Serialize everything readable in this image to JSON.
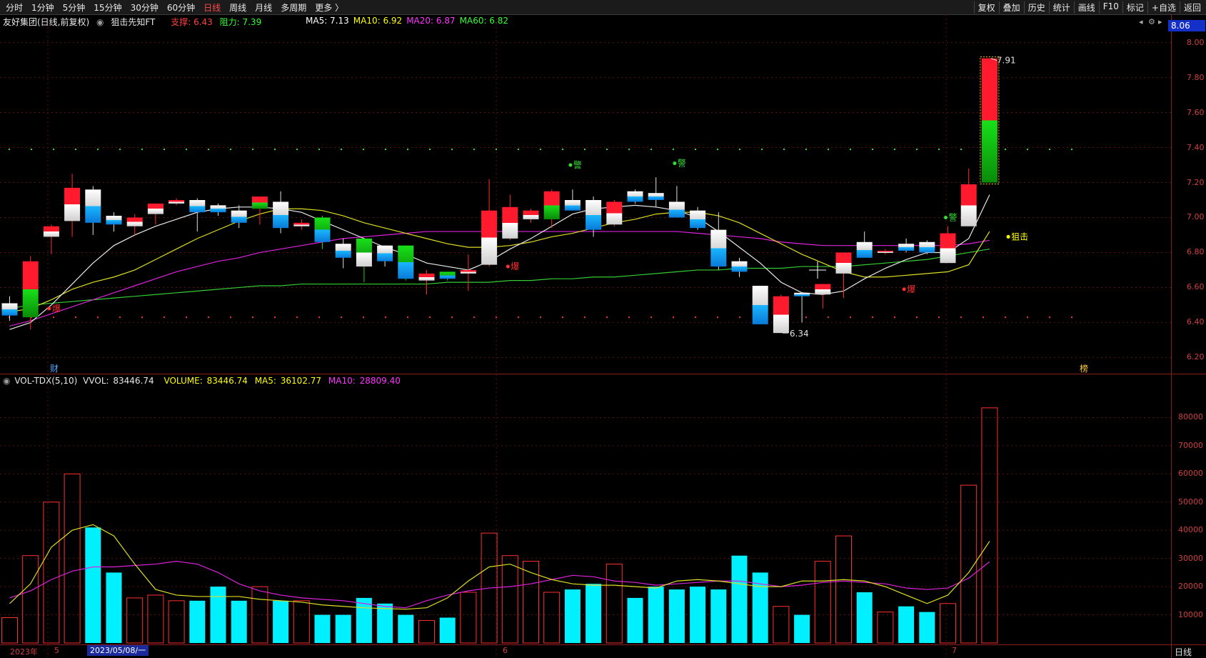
{
  "toolbar": {
    "periods": [
      "分时",
      "1分钟",
      "5分钟",
      "15分钟",
      "30分钟",
      "60分钟",
      "日线",
      "周线",
      "月线",
      "多周期",
      "更多 〉"
    ],
    "active_period": "日线",
    "tools": [
      "复权",
      "叠加",
      "历史",
      "统计",
      "画线",
      "F10",
      "标记",
      "+自选",
      "返回"
    ]
  },
  "main_panel": {
    "title": "友好集团(日线,前复权)",
    "indicator_name": "狙击先知FT",
    "support_label": "支撑:",
    "support_value": "6.43",
    "resist_label": "阻力:",
    "resist_value": "7.39",
    "ma": [
      {
        "label": "MA5:",
        "value": "7.13",
        "color": "#ffffff"
      },
      {
        "label": "MA10:",
        "value": "6.92",
        "color": "#ffff00"
      },
      {
        "label": "MA20:",
        "value": "6.87",
        "color": "#ff33ff"
      },
      {
        "label": "MA60:",
        "value": "6.82",
        "color": "#33ff33"
      }
    ],
    "current_price": "8.06",
    "high_label": "7.91",
    "low_label": "6.34",
    "fin_marker": "财",
    "bang_marker": "榜",
    "signals": [
      {
        "text": "警",
        "color": "#33dd33",
        "candle": 27,
        "price": 7.3
      },
      {
        "text": "警",
        "color": "#33dd33",
        "candle": 32,
        "price": 7.31
      },
      {
        "text": "警",
        "color": "#33dd33",
        "candle": 45,
        "price": 7.0
      },
      {
        "text": "爆",
        "color": "#ff3030",
        "candle": 2,
        "price": 6.48
      },
      {
        "text": "爆",
        "color": "#ff3030",
        "candle": 24,
        "price": 6.72
      },
      {
        "text": "爆",
        "color": "#ff3030",
        "candle": 43,
        "price": 6.59
      },
      {
        "text": "狙击",
        "color": "#ffff00",
        "candle": 48,
        "price": 6.89
      }
    ]
  },
  "vol_panel": {
    "title": "VOL-TDX(5,10)",
    "vvol_label": "VVOL:",
    "vvol_value": "83446.74",
    "volume_label": "VOLUME:",
    "volume_value": "83446.74",
    "ma5_label": "MA5:",
    "ma5_value": "36102.77",
    "ma10_label": "MA10:",
    "ma10_value": "28809.40"
  },
  "price_axis": [
    "8.00",
    "7.80",
    "7.60",
    "7.40",
    "7.20",
    "7.00",
    "6.80",
    "6.60",
    "6.40",
    "6.20"
  ],
  "vol_axis": [
    "80000",
    "70000",
    "60000",
    "50000",
    "40000",
    "30000",
    "20000",
    "10000"
  ],
  "date_axis": {
    "year": "2023年",
    "m5": "5",
    "m6": "6",
    "m7": "7",
    "cursor_date": "2023/05/08/一"
  },
  "bottom_right": "日线",
  "chart_data": {
    "type": "candlestick",
    "price_range": [
      6.12,
      8.08
    ],
    "vol_range": [
      0,
      90000
    ],
    "support": 6.43,
    "resist": 7.39,
    "candles": [
      {
        "o": 6.44,
        "h": 6.55,
        "l": 6.41,
        "c": 6.51,
        "v": 9000,
        "col": "w",
        "up": true
      },
      {
        "o": 6.43,
        "h": 6.78,
        "l": 6.36,
        "c": 6.75,
        "v": 31000,
        "col": "rg",
        "up": true
      },
      {
        "o": 6.89,
        "h": 6.96,
        "l": 6.79,
        "c": 6.95,
        "v": 50000,
        "col": "rw",
        "up": true
      },
      {
        "o": 6.98,
        "h": 7.25,
        "l": 6.89,
        "c": 7.17,
        "v": 60000,
        "col": "rw",
        "up": true
      },
      {
        "o": 7.16,
        "h": 7.18,
        "l": 6.9,
        "c": 6.97,
        "v": 41000,
        "col": "wb",
        "up": false
      },
      {
        "o": 7.01,
        "h": 7.03,
        "l": 6.92,
        "c": 6.96,
        "v": 25000,
        "col": "wb",
        "up": false
      },
      {
        "o": 6.95,
        "h": 7.02,
        "l": 6.9,
        "c": 7.0,
        "v": 16000,
        "col": "rw",
        "up": true
      },
      {
        "o": 7.02,
        "h": 7.08,
        "l": 6.96,
        "c": 7.08,
        "v": 17000,
        "col": "rw",
        "up": true
      },
      {
        "o": 7.08,
        "h": 7.11,
        "l": 7.07,
        "c": 7.1,
        "v": 15000,
        "col": "rw",
        "up": true
      },
      {
        "o": 7.1,
        "h": 7.11,
        "l": 6.92,
        "c": 7.03,
        "v": 15000,
        "col": "wb",
        "up": false
      },
      {
        "o": 7.07,
        "h": 7.08,
        "l": 7.01,
        "c": 7.03,
        "v": 20000,
        "col": "wb",
        "up": false
      },
      {
        "o": 7.04,
        "h": 7.07,
        "l": 6.94,
        "c": 6.97,
        "v": 15000,
        "col": "wb",
        "up": false
      },
      {
        "o": 7.05,
        "h": 7.12,
        "l": 6.96,
        "c": 7.12,
        "v": 20000,
        "col": "rg",
        "up": true
      },
      {
        "o": 7.09,
        "h": 7.15,
        "l": 6.91,
        "c": 6.94,
        "v": 15000,
        "col": "wb",
        "up": false
      },
      {
        "o": 6.95,
        "h": 6.99,
        "l": 6.93,
        "c": 6.97,
        "v": 15000,
        "col": "rw",
        "up": true
      },
      {
        "o": 7.0,
        "h": 7.01,
        "l": 6.82,
        "c": 6.86,
        "v": 10000,
        "col": "gb",
        "up": false
      },
      {
        "o": 6.85,
        "h": 6.88,
        "l": 6.71,
        "c": 6.77,
        "v": 10000,
        "col": "wb",
        "up": false
      },
      {
        "o": 6.88,
        "h": 6.88,
        "l": 6.63,
        "c": 6.72,
        "v": 16000,
        "col": "gw",
        "up": false
      },
      {
        "o": 6.84,
        "h": 6.84,
        "l": 6.72,
        "c": 6.75,
        "v": 14000,
        "col": "wb",
        "up": false
      },
      {
        "o": 6.84,
        "h": 6.84,
        "l": 6.64,
        "c": 6.65,
        "v": 10000,
        "col": "gb",
        "up": false
      },
      {
        "o": 6.64,
        "h": 6.7,
        "l": 6.56,
        "c": 6.68,
        "v": 8000,
        "col": "rw",
        "up": true
      },
      {
        "o": 6.69,
        "h": 6.69,
        "l": 6.64,
        "c": 6.65,
        "v": 9000,
        "col": "gb",
        "up": false
      },
      {
        "o": 6.68,
        "h": 6.79,
        "l": 6.58,
        "c": 6.7,
        "v": 18000,
        "col": "rw",
        "up": true
      },
      {
        "o": 6.73,
        "h": 7.22,
        "l": 6.72,
        "c": 7.04,
        "v": 39000,
        "col": "rw",
        "up": true
      },
      {
        "o": 6.88,
        "h": 7.13,
        "l": 6.87,
        "c": 7.06,
        "v": 31000,
        "col": "rw",
        "up": true
      },
      {
        "o": 6.99,
        "h": 7.05,
        "l": 6.97,
        "c": 7.04,
        "v": 29000,
        "col": "rw",
        "up": true
      },
      {
        "o": 6.99,
        "h": 7.16,
        "l": 6.94,
        "c": 7.15,
        "v": 18000,
        "col": "rg",
        "up": true
      },
      {
        "o": 7.1,
        "h": 7.16,
        "l": 7.04,
        "c": 7.04,
        "v": 19000,
        "col": "wb",
        "up": false
      },
      {
        "o": 7.1,
        "h": 7.12,
        "l": 6.89,
        "c": 6.93,
        "v": 21000,
        "col": "wb",
        "up": false
      },
      {
        "o": 6.96,
        "h": 7.1,
        "l": 6.95,
        "c": 7.09,
        "v": 28000,
        "col": "rw",
        "up": true
      },
      {
        "o": 7.15,
        "h": 7.16,
        "l": 7.08,
        "c": 7.09,
        "v": 16000,
        "col": "wb",
        "up": false
      },
      {
        "o": 7.14,
        "h": 7.23,
        "l": 7.06,
        "c": 7.1,
        "v": 20000,
        "col": "wb",
        "up": false
      },
      {
        "o": 7.09,
        "h": 7.18,
        "l": 7.01,
        "c": 7.0,
        "v": 19000,
        "col": "wb",
        "up": false
      },
      {
        "o": 7.04,
        "h": 7.06,
        "l": 6.93,
        "c": 6.94,
        "v": 20000,
        "col": "wb",
        "up": false
      },
      {
        "o": 6.93,
        "h": 7.03,
        "l": 6.7,
        "c": 6.72,
        "v": 19000,
        "col": "wb",
        "up": false
      },
      {
        "o": 6.75,
        "h": 6.77,
        "l": 6.66,
        "c": 6.69,
        "v": 31000,
        "col": "wb",
        "up": false
      },
      {
        "o": 6.61,
        "h": 6.61,
        "l": 6.39,
        "c": 6.39,
        "v": 25000,
        "col": "wb",
        "up": false
      },
      {
        "o": 6.34,
        "h": 6.56,
        "l": 6.34,
        "c": 6.55,
        "v": 13000,
        "col": "rw",
        "up": true
      },
      {
        "o": 6.57,
        "h": 6.57,
        "l": 6.4,
        "c": 6.55,
        "v": 10000,
        "col": "wb",
        "up": false
      },
      {
        "o": 6.56,
        "h": 6.62,
        "l": 6.48,
        "c": 6.62,
        "v": 29000,
        "col": "rw",
        "up": true
      },
      {
        "o": 6.68,
        "h": 6.8,
        "l": 6.54,
        "c": 6.8,
        "v": 38000,
        "col": "rw",
        "up": true
      },
      {
        "o": 6.86,
        "h": 6.92,
        "l": 6.78,
        "c": 6.77,
        "v": 18000,
        "col": "wb",
        "up": false
      },
      {
        "o": 6.8,
        "h": 6.82,
        "l": 6.79,
        "c": 6.81,
        "v": 11000,
        "col": "rw",
        "up": true
      },
      {
        "o": 6.85,
        "h": 6.88,
        "l": 6.8,
        "c": 6.81,
        "v": 13000,
        "col": "wb",
        "up": false
      },
      {
        "o": 6.86,
        "h": 6.87,
        "l": 6.79,
        "c": 6.8,
        "v": 11000,
        "col": "wb",
        "up": false
      },
      {
        "o": 6.74,
        "h": 6.95,
        "l": 6.74,
        "c": 6.91,
        "v": 14000,
        "col": "rw",
        "up": true
      },
      {
        "o": 6.95,
        "h": 7.28,
        "l": 6.95,
        "c": 7.19,
        "v": 56000,
        "col": "rw",
        "up": true
      },
      {
        "o": 7.2,
        "h": 7.91,
        "l": 7.2,
        "c": 7.91,
        "v": 83446,
        "col": "rg",
        "up": true,
        "hl": true
      }
    ],
    "ma5": [
      6.36,
      6.4,
      6.5,
      6.62,
      6.74,
      6.84,
      6.9,
      6.95,
      6.99,
      7.03,
      7.05,
      7.06,
      7.06,
      7.05,
      7.03,
      6.98,
      6.93,
      6.88,
      6.83,
      6.79,
      6.74,
      6.72,
      6.7,
      6.75,
      6.82,
      6.88,
      6.95,
      7.02,
      7.05,
      7.06,
      7.07,
      7.06,
      7.04,
      7.0,
      6.92,
      6.83,
      6.74,
      6.63,
      6.57,
      6.56,
      6.58,
      6.65,
      6.71,
      6.76,
      6.8,
      6.8,
      6.88,
      7.13
    ],
    "ma10": [
      6.46,
      6.48,
      6.53,
      6.59,
      6.63,
      6.66,
      6.7,
      6.76,
      6.82,
      6.88,
      6.93,
      6.98,
      7.02,
      7.05,
      7.05,
      7.04,
      7.01,
      6.97,
      6.94,
      6.91,
      6.88,
      6.85,
      6.83,
      6.83,
      6.84,
      6.86,
      6.89,
      6.91,
      6.94,
      6.97,
      6.99,
      7.02,
      7.03,
      7.03,
      7.01,
      6.97,
      6.91,
      6.85,
      6.79,
      6.74,
      6.69,
      6.66,
      6.66,
      6.67,
      6.68,
      6.69,
      6.73,
      6.92
    ],
    "ma20": [
      6.38,
      6.41,
      6.45,
      6.49,
      6.53,
      6.57,
      6.61,
      6.65,
      6.69,
      6.72,
      6.75,
      6.77,
      6.8,
      6.82,
      6.84,
      6.86,
      6.88,
      6.89,
      6.9,
      6.91,
      6.92,
      6.92,
      6.92,
      6.92,
      6.92,
      6.92,
      6.92,
      6.92,
      6.92,
      6.92,
      6.92,
      6.92,
      6.92,
      6.91,
      6.9,
      6.89,
      6.88,
      6.86,
      6.85,
      6.84,
      6.84,
      6.84,
      6.84,
      6.84,
      6.84,
      6.84,
      6.85,
      6.87
    ],
    "ma60": [
      6.48,
      6.5,
      6.51,
      6.52,
      6.53,
      6.54,
      6.55,
      6.56,
      6.57,
      6.58,
      6.59,
      6.6,
      6.61,
      6.61,
      6.62,
      6.62,
      6.62,
      6.62,
      6.62,
      6.62,
      6.62,
      6.63,
      6.63,
      6.63,
      6.64,
      6.64,
      6.65,
      6.65,
      6.66,
      6.66,
      6.67,
      6.68,
      6.69,
      6.7,
      6.7,
      6.71,
      6.71,
      6.71,
      6.72,
      6.72,
      6.72,
      6.73,
      6.74,
      6.75,
      6.76,
      6.78,
      6.8,
      6.82
    ],
    "vol_ma5": [
      14000,
      21000,
      34000,
      40000,
      42000,
      38000,
      28000,
      19000,
      17000,
      16500,
      16500,
      16500,
      15500,
      15000,
      14500,
      13500,
      13000,
      12500,
      12200,
      12000,
      12500,
      16000,
      22000,
      27000,
      28000,
      25000,
      22500,
      21000,
      20500,
      20500,
      20000,
      19500,
      22000,
      22500,
      22000,
      21000,
      20000,
      20000,
      22000,
      22000,
      22500,
      22000,
      20000,
      17000,
      14000,
      17000,
      25000,
      36102
    ],
    "vol_ma10": [
      16000,
      18500,
      22500,
      25500,
      27000,
      27000,
      27500,
      28000,
      29000,
      28000,
      25000,
      21000,
      18500,
      17000,
      16000,
      15500,
      15000,
      14000,
      13000,
      12500,
      15000,
      17000,
      18500,
      19500,
      20000,
      21000,
      22500,
      24000,
      23500,
      22000,
      21500,
      20500,
      21000,
      21500,
      22000,
      22000,
      21000,
      20000,
      20500,
      21500,
      22000,
      21500,
      21000,
      19500,
      19000,
      19500,
      23000,
      28809
    ]
  }
}
